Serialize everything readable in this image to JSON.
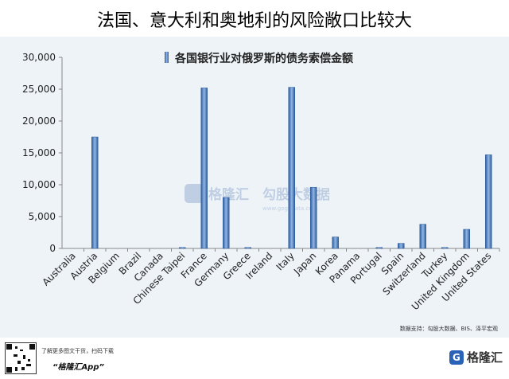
{
  "title": "法国、意大利和奥地利的风险敞口比较大",
  "source": "数据支持：勾股大数据、BIS、泽平宏观",
  "watermark": {
    "brand": "格隆汇",
    "site": "勾股大数据",
    "url": "www.gogudata.com"
  },
  "footer": {
    "line1": "了解更多图文干货，扫码下载",
    "line2": "“格隆汇App”",
    "brand": "格隆汇",
    "brand_mark": "G"
  },
  "colors": {
    "bar": "#5b8fd1",
    "bar_dark": "#2c5a9a",
    "plot_bg": "#eef3f8",
    "axis": "#888888"
  },
  "chart_data": {
    "type": "bar",
    "categories": [
      "Australia",
      "Austria",
      "Belgium",
      "Brazil",
      "Canada",
      "Chinese Taipei",
      "France",
      "Germany",
      "Greece",
      "Ireland",
      "Italy",
      "Japan",
      "Korea",
      "Panama",
      "Portugal",
      "Spain",
      "Switzerland",
      "Turkey",
      "United Kingdom",
      "United States"
    ],
    "series": [
      {
        "name": "各国银行业对俄罗斯的债务索偿金额",
        "values": [
          0,
          17500,
          0,
          0,
          0,
          150,
          25200,
          8000,
          150,
          0,
          25300,
          9600,
          1800,
          0,
          150,
          800,
          3800,
          150,
          3000,
          14700
        ]
      }
    ],
    "ylim": [
      0,
      30000
    ],
    "yticks": [
      "0",
      "5,000",
      "10,000",
      "15,000",
      "20,000",
      "25,000",
      "30,000"
    ],
    "ytick_values": [
      0,
      5000,
      10000,
      15000,
      20000,
      25000,
      30000
    ],
    "legend_position": "top-right",
    "grid": false
  }
}
